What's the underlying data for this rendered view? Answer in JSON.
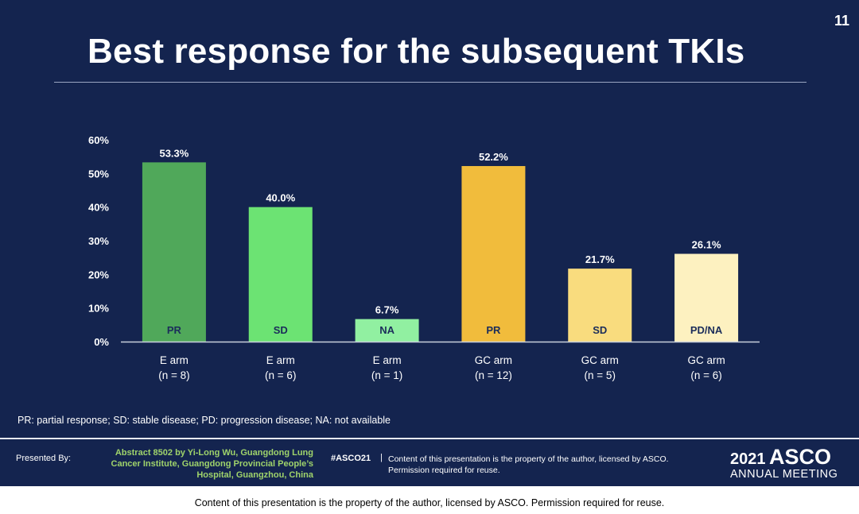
{
  "slide": {
    "number": "11",
    "title": "Best response for the subsequent TKIs",
    "footnote": "PR: partial response;  SD: stable disease; PD: progression disease; NA: not available"
  },
  "footer": {
    "presented_by": "Presented By:",
    "abstract_lines": [
      "Abstract 8502 by Yi-Long Wu, Guangdong Lung",
      "Cancer Institute, Guangdong Provincial People’s",
      "Hospital, Guangzhou, China"
    ],
    "hashtag": "#ASCO21",
    "separator": "|",
    "copyright_lines": [
      "Content of this presentation is the property of the author, licensed by ASCO.",
      "Permission required for reuse."
    ],
    "logo_year": "2021",
    "logo_name": "ASCO",
    "logo_meeting": "ANNUAL MEETING"
  },
  "bottom_text": "Content of this presentation is the property of the author, licensed by ASCO. Permission required for reuse.",
  "colors": {
    "background": "#14244f",
    "text": "#ffffff",
    "axis": "#c8cfdd",
    "bar_label_text": "#1b2d5a",
    "accent_green": "#9fd36b"
  },
  "chart_data": {
    "type": "bar",
    "title": "",
    "xlabel": "",
    "ylabel": "",
    "ylim": [
      0,
      60
    ],
    "yticks": [
      0,
      10,
      20,
      30,
      40,
      50,
      60
    ],
    "ytick_labels": [
      "0%",
      "10%",
      "20%",
      "30%",
      "40%",
      "50%",
      "60%"
    ],
    "grid": false,
    "legend": "none",
    "categories": [
      {
        "arm": "E arm",
        "n": "(n = 8)"
      },
      {
        "arm": "E arm",
        "n": "(n = 6)"
      },
      {
        "arm": "E arm",
        "n": "(n = 1)"
      },
      {
        "arm": "GC arm",
        "n": "(n = 12)"
      },
      {
        "arm": "GC arm",
        "n": "(n = 5)"
      },
      {
        "arm": "GC arm",
        "n": "(n = 6)"
      }
    ],
    "values": [
      53.3,
      40.0,
      6.7,
      52.2,
      21.7,
      26.1
    ],
    "value_labels": [
      "53.3%",
      "40.0%",
      "6.7%",
      "52.2%",
      "21.7%",
      "26.1%"
    ],
    "response_labels": [
      "PR",
      "SD",
      "NA",
      "PR",
      "SD",
      "PD/NA"
    ],
    "bar_colors": [
      "#50a85a",
      "#6ce373",
      "#91f0a1",
      "#f1bc3c",
      "#f9dc7e",
      "#fdf1c0"
    ]
  }
}
